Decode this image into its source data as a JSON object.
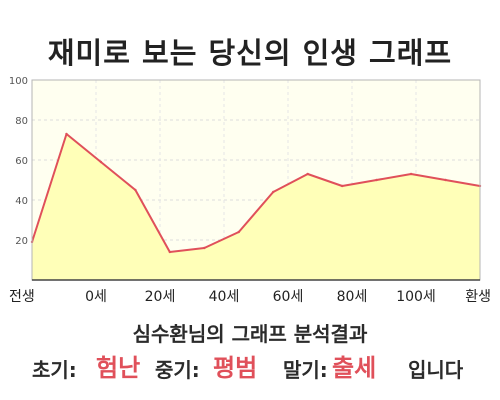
{
  "title": "재미로 보는 당신의 인생 그래프",
  "chart_data": {
    "type": "area",
    "title": "재미로 보는 당신의 인생 그래프",
    "xlabel": "",
    "ylabel": "",
    "ylim": [
      0,
      100
    ],
    "y_ticks": [
      20,
      40,
      60,
      80,
      100
    ],
    "x_tick_labels": [
      "전생",
      "0세",
      "20세",
      "40세",
      "60세",
      "80세",
      "100세",
      "환생"
    ],
    "grid": true,
    "line_color": "#e0505a",
    "fill_color": "#ffffb8",
    "background_color": "#fffff0",
    "series": [
      {
        "x": [
          "전생",
          "0세",
          "",
          "20세",
          "",
          "40세",
          "",
          "60세",
          "",
          "80세",
          "",
          "100세",
          "",
          "환생"
        ],
        "values": [
          19,
          73,
          59,
          45,
          14,
          16,
          24,
          44,
          53,
          47,
          50,
          53,
          50,
          47
        ]
      }
    ]
  },
  "result": {
    "heading": "심수환님의 그래프 분석결과",
    "early_label": "초기:",
    "early_value": "험난",
    "middle_label": "중기:",
    "middle_value": "평범",
    "late_label": "말기:",
    "late_value": "출세",
    "ending": "입니다"
  }
}
